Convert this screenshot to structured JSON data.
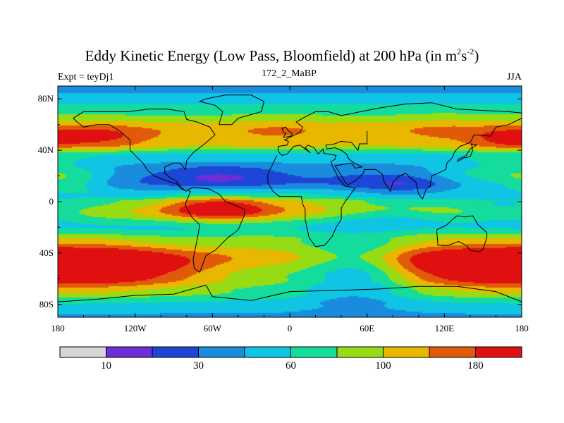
{
  "chart_data": {
    "type": "heatmap",
    "title_prefix": "Eddy Kinetic Energy (Low Pass, Bloomfield) at 200 hPa (in m",
    "title_sup1": "2",
    "title_mid": "s",
    "title_sup2": "-2",
    "title_suffix": ")",
    "subtitle_left": "Expt = teyDj1",
    "subtitle_center": "172_2_MaBP",
    "subtitle_right": "JJA",
    "x_range": [
      -180,
      180
    ],
    "y_range": [
      -90,
      90
    ],
    "x_ticks": [
      {
        "value": -180,
        "label": "180"
      },
      {
        "value": -120,
        "label": "120W"
      },
      {
        "value": -60,
        "label": "60W"
      },
      {
        "value": 0,
        "label": "0"
      },
      {
        "value": 60,
        "label": "60E"
      },
      {
        "value": 120,
        "label": "120E"
      },
      {
        "value": 180,
        "label": "180"
      }
    ],
    "y_ticks": [
      {
        "value": 80,
        "label": "80N"
      },
      {
        "value": 40,
        "label": "40N"
      },
      {
        "value": 0,
        "label": "0"
      },
      {
        "value": -40,
        "label": "40S"
      },
      {
        "value": -80,
        "label": "80S"
      }
    ],
    "colorbar": {
      "colors": [
        "#d6d6d6",
        "#6c2ed6",
        "#1e46d6",
        "#1a8cde",
        "#10c4e4",
        "#14dc9c",
        "#96dc14",
        "#e8b800",
        "#e05a0a",
        "#e01010"
      ],
      "boundary_labels": [
        {
          "index": 1,
          "label": "10"
        },
        {
          "index": 3,
          "label": "30"
        },
        {
          "index": 5,
          "label": "60"
        },
        {
          "index": 7,
          "label": "100"
        },
        {
          "index": 9,
          "label": "180"
        }
      ]
    },
    "field": {
      "lat_profile": [
        [
          90,
          3.5
        ],
        [
          80,
          4.3
        ],
        [
          70,
          5.8
        ],
        [
          55,
          7.6
        ],
        [
          45,
          7.1
        ],
        [
          35,
          4.6
        ],
        [
          25,
          3.6
        ],
        [
          15,
          3.1
        ],
        [
          5,
          4.4
        ],
        [
          0,
          5.9
        ],
        [
          -8,
          6.7
        ],
        [
          -20,
          5.1
        ],
        [
          -30,
          6.5
        ],
        [
          -45,
          8.3
        ],
        [
          -60,
          7.4
        ],
        [
          -70,
          6.2
        ],
        [
          -80,
          4.8
        ],
        [
          -90,
          3.8
        ]
      ],
      "blobs": [
        {
          "lon": -55,
          "lat": -5,
          "slon": 32,
          "slat": 7,
          "amp": 4.0
        },
        {
          "lon": -140,
          "lat": -50,
          "slon": 40,
          "slat": 12,
          "amp": 3.0
        },
        {
          "lon": 150,
          "lat": -50,
          "slon": 40,
          "slat": 12,
          "amp": 3.0
        },
        {
          "lon": -20,
          "lat": -55,
          "slon": 30,
          "slat": 10,
          "amp": -1.0
        },
        {
          "lon": 50,
          "lat": -55,
          "slon": 30,
          "slat": 18,
          "amp": -3.0
        },
        {
          "lon": 100,
          "lat": -45,
          "slon": 20,
          "slat": 10,
          "amp": 0.6
        },
        {
          "lon": -150,
          "lat": 50,
          "slon": 30,
          "slat": 7,
          "amp": 2.0
        },
        {
          "lon": 165,
          "lat": 48,
          "slon": 20,
          "slat": 6,
          "amp": 1.6
        },
        {
          "lon": -10,
          "lat": 55,
          "slon": 25,
          "slat": 8,
          "amp": 0.6
        },
        {
          "lon": 120,
          "lat": 55,
          "slon": 25,
          "slat": 8,
          "amp": 0.7
        },
        {
          "lon": -55,
          "lat": 20,
          "slon": 35,
          "slat": 6,
          "amp": -1.5
        },
        {
          "lon": 70,
          "lat": 15,
          "slon": 28,
          "slat": 6,
          "amp": -0.8
        },
        {
          "lon": 95,
          "lat": 12,
          "slon": 20,
          "slat": 5,
          "amp": -0.8
        },
        {
          "lon": 80,
          "lat": -12,
          "slon": 35,
          "slat": 5,
          "amp": -1.2
        },
        {
          "lon": 160,
          "lat": 20,
          "slon": 35,
          "slat": 8,
          "amp": 2.0
        },
        {
          "lon": -170,
          "lat": 15,
          "slon": 20,
          "slat": 8,
          "amp": 1.5
        },
        {
          "lon": 170,
          "lat": -5,
          "slon": 25,
          "slat": 10,
          "amp": -1.3
        },
        {
          "lon": 20,
          "lat": 0,
          "slon": 25,
          "slat": 8,
          "amp": 0.8
        },
        {
          "lon": -100,
          "lat": -25,
          "slon": 45,
          "slat": 8,
          "amp": -0.5
        }
      ]
    },
    "coastlines": [
      {
        "name": "north-america",
        "points": [
          [
            -168,
            65
          ],
          [
            -160,
            70
          ],
          [
            -140,
            70
          ],
          [
            -125,
            70
          ],
          [
            -110,
            72
          ],
          [
            -95,
            72
          ],
          [
            -82,
            70
          ],
          [
            -80,
            64
          ],
          [
            -72,
            62
          ],
          [
            -62,
            58
          ],
          [
            -58,
            52
          ],
          [
            -66,
            45
          ],
          [
            -70,
            42
          ],
          [
            -75,
            38
          ],
          [
            -80,
            32
          ],
          [
            -81,
            25
          ],
          [
            -85,
            30
          ],
          [
            -90,
            30
          ],
          [
            -97,
            27
          ],
          [
            -97,
            22
          ],
          [
            -92,
            18
          ],
          [
            -88,
            16
          ],
          [
            -84,
            11
          ],
          [
            -80,
            8
          ],
          [
            -84,
            10
          ],
          [
            -88,
            14
          ],
          [
            -95,
            16
          ],
          [
            -105,
            20
          ],
          [
            -110,
            24
          ],
          [
            -114,
            30
          ],
          [
            -118,
            34
          ],
          [
            -124,
            40
          ],
          [
            -124,
            48
          ],
          [
            -132,
            55
          ],
          [
            -140,
            60
          ],
          [
            -150,
            60
          ],
          [
            -160,
            58
          ],
          [
            -165,
            62
          ],
          [
            -168,
            65
          ]
        ]
      },
      {
        "name": "greenland",
        "points": [
          [
            -55,
            60
          ],
          [
            -45,
            60
          ],
          [
            -40,
            65
          ],
          [
            -22,
            70
          ],
          [
            -20,
            78
          ],
          [
            -30,
            83
          ],
          [
            -50,
            83
          ],
          [
            -65,
            80
          ],
          [
            -70,
            78
          ],
          [
            -58,
            75
          ],
          [
            -52,
            70
          ],
          [
            -55,
            60
          ]
        ]
      },
      {
        "name": "south-america",
        "points": [
          [
            -80,
            9
          ],
          [
            -75,
            11
          ],
          [
            -63,
            10
          ],
          [
            -55,
            6
          ],
          [
            -50,
            0
          ],
          [
            -42,
            -3
          ],
          [
            -35,
            -6
          ],
          [
            -35,
            -10
          ],
          [
            -40,
            -22
          ],
          [
            -48,
            -28
          ],
          [
            -55,
            -35
          ],
          [
            -58,
            -38
          ],
          [
            -65,
            -42
          ],
          [
            -68,
            -50
          ],
          [
            -70,
            -55
          ],
          [
            -74,
            -52
          ],
          [
            -75,
            -45
          ],
          [
            -73,
            -35
          ],
          [
            -71,
            -25
          ],
          [
            -70,
            -18
          ],
          [
            -76,
            -12
          ],
          [
            -80,
            -5
          ],
          [
            -81,
            -2
          ],
          [
            -80,
            1
          ],
          [
            -77,
            8
          ],
          [
            -80,
            9
          ]
        ]
      },
      {
        "name": "eurasia-africa",
        "points": [
          [
            -10,
            36
          ],
          [
            -17,
            21
          ],
          [
            -17,
            15
          ],
          [
            -13,
            8
          ],
          [
            -8,
            4
          ],
          [
            5,
            4
          ],
          [
            9,
            4
          ],
          [
            10,
            -2
          ],
          [
            12,
            -6
          ],
          [
            12,
            -14
          ],
          [
            15,
            -28
          ],
          [
            20,
            -35
          ],
          [
            27,
            -34
          ],
          [
            33,
            -27
          ],
          [
            36,
            -20
          ],
          [
            40,
            -14
          ],
          [
            40,
            -5
          ],
          [
            43,
            0
          ],
          [
            51,
            11
          ],
          [
            43,
            12
          ],
          [
            38,
            18
          ],
          [
            33,
            28
          ],
          [
            32,
            31
          ],
          [
            35,
            33
          ],
          [
            36,
            36
          ],
          [
            30,
            37
          ],
          [
            26,
            38
          ],
          [
            26,
            41
          ],
          [
            22,
            37
          ],
          [
            19,
            42
          ],
          [
            14,
            44
          ],
          [
            12,
            42
          ],
          [
            16,
            38
          ],
          [
            8,
            44
          ],
          [
            3,
            43
          ],
          [
            -2,
            37
          ],
          [
            -6,
            36
          ],
          [
            -9,
            39
          ],
          [
            -9,
            43
          ],
          [
            -2,
            44
          ],
          [
            -1,
            47
          ],
          [
            -4,
            48
          ],
          [
            2,
            51
          ],
          [
            8,
            54
          ],
          [
            10,
            58
          ],
          [
            5,
            62
          ],
          [
            12,
            66
          ],
          [
            20,
            70
          ],
          [
            30,
            70
          ],
          [
            40,
            67
          ],
          [
            45,
            68
          ],
          [
            55,
            70
          ],
          [
            70,
            73
          ],
          [
            90,
            76
          ],
          [
            110,
            77
          ],
          [
            130,
            72
          ],
          [
            150,
            71
          ],
          [
            170,
            70
          ],
          [
            180,
            69
          ],
          [
            180,
            65
          ],
          [
            170,
            60
          ],
          [
            160,
            58
          ],
          [
            156,
            51
          ],
          [
            143,
            52
          ],
          [
            140,
            46
          ],
          [
            132,
            43
          ],
          [
            128,
            39
          ],
          [
            126,
            34
          ],
          [
            122,
            30
          ],
          [
            121,
            25
          ],
          [
            117,
            23
          ],
          [
            110,
            20
          ],
          [
            109,
            12
          ],
          [
            106,
            10
          ],
          [
            103,
            2
          ],
          [
            100,
            6
          ],
          [
            98,
            15
          ],
          [
            94,
            18
          ],
          [
            90,
            22
          ],
          [
            85,
            20
          ],
          [
            80,
            15
          ],
          [
            78,
            8
          ],
          [
            73,
            16
          ],
          [
            72,
            21
          ],
          [
            67,
            25
          ],
          [
            58,
            25
          ],
          [
            57,
            22
          ],
          [
            52,
            17
          ],
          [
            45,
            13
          ],
          [
            43,
            15
          ],
          [
            39,
            22
          ],
          [
            35,
            28
          ],
          [
            48,
            30
          ],
          [
            51,
            26
          ],
          [
            56,
            27
          ],
          [
            50,
            30
          ],
          [
            46,
            33
          ],
          [
            44,
            37
          ],
          [
            40,
            40
          ],
          [
            35,
            42
          ],
          [
            29,
            41
          ],
          [
            28,
            44
          ],
          [
            35,
            45
          ],
          [
            40,
            47
          ],
          [
            48,
            46
          ],
          [
            53,
            40
          ],
          [
            54,
            45
          ],
          [
            60,
            45
          ],
          [
            60,
            55
          ]
        ]
      },
      {
        "name": "great-britain",
        "points": [
          [
            -5,
            50
          ],
          [
            1,
            51
          ],
          [
            2,
            53
          ],
          [
            -1,
            55
          ],
          [
            -3,
            58
          ],
          [
            -6,
            57
          ],
          [
            -5,
            54
          ],
          [
            -3,
            53
          ],
          [
            -5,
            50
          ]
        ]
      },
      {
        "name": "australia",
        "points": [
          [
            114,
            -22
          ],
          [
            115,
            -34
          ],
          [
            123,
            -34
          ],
          [
            131,
            -31
          ],
          [
            137,
            -34
          ],
          [
            140,
            -38
          ],
          [
            147,
            -39
          ],
          [
            150,
            -37
          ],
          [
            153,
            -28
          ],
          [
            153,
            -24
          ],
          [
            146,
            -18
          ],
          [
            142,
            -11
          ],
          [
            136,
            -12
          ],
          [
            130,
            -11
          ],
          [
            126,
            -14
          ],
          [
            122,
            -18
          ],
          [
            114,
            -22
          ]
        ]
      },
      {
        "name": "japan",
        "points": [
          [
            130,
            31
          ],
          [
            135,
            34
          ],
          [
            140,
            35
          ],
          [
            142,
            40
          ],
          [
            141,
            45
          ],
          [
            145,
            44
          ],
          [
            140,
            41
          ],
          [
            137,
            36
          ],
          [
            131,
            33
          ],
          [
            130,
            31
          ]
        ]
      },
      {
        "name": "antarctica-edge",
        "points": [
          [
            -180,
            -78
          ],
          [
            -150,
            -76
          ],
          [
            -120,
            -73
          ],
          [
            -90,
            -72
          ],
          [
            -65,
            -65
          ],
          [
            -60,
            -74
          ],
          [
            -30,
            -77
          ],
          [
            0,
            -70
          ],
          [
            40,
            -69
          ],
          [
            70,
            -68
          ],
          [
            100,
            -66
          ],
          [
            130,
            -66
          ],
          [
            160,
            -70
          ],
          [
            180,
            -78
          ]
        ]
      }
    ]
  }
}
